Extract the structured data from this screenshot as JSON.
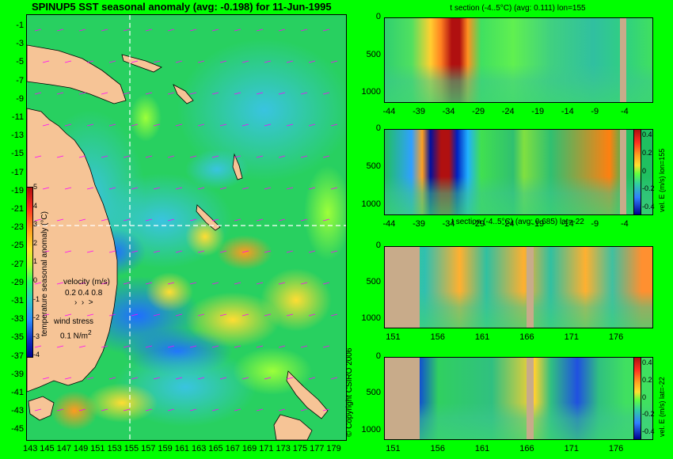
{
  "map": {
    "title": "SPINUP5 SST seasonal anomaly (avg: -0.198) for 11-Jun-1995",
    "lat_ticks": [
      "-1",
      "-3",
      "-5",
      "-7",
      "-9",
      "-11",
      "-13",
      "-15",
      "-17",
      "-19",
      "-21",
      "-23",
      "-25",
      "-27",
      "-29",
      "-31",
      "-33",
      "-35",
      "-37",
      "-39",
      "-41",
      "-43",
      "-45"
    ],
    "lon_ticks": [
      "143",
      "145",
      "147",
      "149",
      "151",
      "153",
      "155",
      "157",
      "159",
      "161",
      "163",
      "165",
      "167",
      "169",
      "171",
      "173",
      "175",
      "177",
      "179"
    ],
    "colorbar": {
      "ticks": [
        "5",
        "4",
        "3",
        "2",
        "1",
        "0",
        "-1",
        "-2",
        "-3",
        "-4"
      ],
      "label": "temperature seasonal anomaly (°C)"
    },
    "velocity_legend": {
      "label": "velocity (m/s)",
      "values": "0.2 0.4 0.8"
    },
    "wind_legend": {
      "label": "wind stress",
      "value": "0.1 N/m",
      "unit_sup": "2"
    },
    "copyright": "© Copyright CSIRO 2006",
    "crosshair": {
      "lon": 155,
      "lat": -22
    }
  },
  "sections": [
    {
      "title": "t section (-4..5°C) (avg: 0.111) lon=155",
      "depth_ticks": [
        "0",
        "500",
        "1000"
      ],
      "x_ticks": [
        "-44",
        "-39",
        "-34",
        "-29",
        "-24",
        "-19",
        "-14",
        "-9",
        "-4"
      ],
      "x_range": [
        -45,
        0
      ],
      "kind": "temp"
    },
    {
      "title": "",
      "depth_ticks": [
        "0",
        "500",
        "1000"
      ],
      "x_ticks": [
        "-44",
        "-39",
        "-34",
        "-29",
        "-24",
        "-19",
        "-14",
        "-9",
        "-4"
      ],
      "x_range": [
        -45,
        0
      ],
      "kind": "vel",
      "colorbar": {
        "ticks": [
          "0.4",
          "0.2",
          "0",
          "-0.2",
          "-0.4"
        ],
        "label": "vel. E (m/s) lon=155"
      }
    },
    {
      "title": "t section (-4..5°C) (avg: 0.685) lat=-22",
      "depth_ticks": [
        "0",
        "500",
        "1000"
      ],
      "x_ticks": [
        "151",
        "156",
        "161",
        "166",
        "171",
        "176"
      ],
      "x_range": [
        150,
        180
      ],
      "kind": "temp"
    },
    {
      "title": "",
      "depth_ticks": [
        "0",
        "500",
        "1000"
      ],
      "x_ticks": [
        "151",
        "156",
        "161",
        "166",
        "171",
        "176"
      ],
      "x_range": [
        150,
        180
      ],
      "kind": "vel",
      "colorbar": {
        "ticks": [
          "0.4",
          "0.2",
          "0",
          "-0.2",
          "-0.4"
        ],
        "label": "vel. E (m/s) lat=-22"
      }
    }
  ],
  "chart_data": [
    {
      "type": "heatmap",
      "title": "SPINUP5 SST seasonal anomaly (avg: -0.198) for 11-Jun-1995",
      "xlim": [
        142,
        180
      ],
      "ylim": [
        -45,
        0
      ],
      "colorbar_range": [
        -4,
        5
      ],
      "colorbar_label": "temperature seasonal anomaly (°C)",
      "average": -0.198
    },
    {
      "type": "heatmap",
      "title": "t section (-4..5°C) (avg: 0.111) lon=155",
      "xlim": [
        -45,
        0
      ],
      "ylim": [
        1050,
        0
      ],
      "colorbar_range": [
        -4,
        5
      ],
      "average": 0.111
    },
    {
      "type": "heatmap",
      "xlim": [
        -45,
        0
      ],
      "ylim": [
        1050,
        0
      ],
      "colorbar_range": [
        -0.4,
        0.4
      ],
      "colorbar_label": "vel. E (m/s) lon=155"
    },
    {
      "type": "heatmap",
      "title": "t section (-4..5°C) (avg: 0.685) lat=-22",
      "xlim": [
        150,
        180
      ],
      "ylim": [
        1050,
        0
      ],
      "colorbar_range": [
        -4,
        5
      ],
      "average": 0.685
    },
    {
      "type": "heatmap",
      "xlim": [
        150,
        180
      ],
      "ylim": [
        1050,
        0
      ],
      "colorbar_range": [
        -0.4,
        0.4
      ],
      "colorbar_label": "vel. E (m/s) lat=-22"
    }
  ]
}
